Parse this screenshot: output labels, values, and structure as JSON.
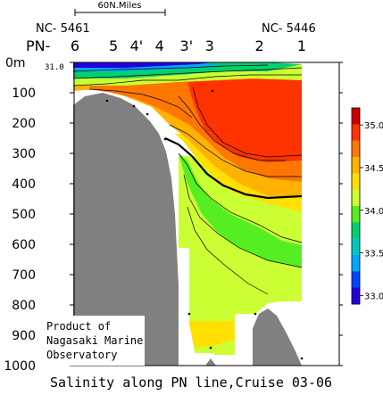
{
  "chart_data": {
    "type": "heatmap",
    "title": "Salinity along PN line,Cruise 03-06",
    "scale_bar_label": "60N.Miles",
    "station_ids": {
      "left": "NC- 5461",
      "right": "NC- 5446"
    },
    "line_prefix": "PN-",
    "stations": [
      {
        "label": "6",
        "x": 0
      },
      {
        "label": "5",
        "x": 1
      },
      {
        "label": "4'",
        "x": 1.6
      },
      {
        "label": "4",
        "x": 2.2
      },
      {
        "label": "3'",
        "x": 2.9
      },
      {
        "label": "3",
        "x": 3.5
      },
      {
        "label": "2",
        "x": 4.8
      },
      {
        "label": "1",
        "x": 5.9
      }
    ],
    "y_axis": {
      "range": [
        0,
        1000
      ],
      "inverted": true,
      "ticks": [
        {
          "value": 0,
          "label": "0m"
        },
        {
          "value": 100,
          "label": "100"
        },
        {
          "value": 200,
          "label": "200"
        },
        {
          "value": 300,
          "label": "300"
        },
        {
          "value": 400,
          "label": "400"
        },
        {
          "value": 500,
          "label": "500"
        },
        {
          "value": 600,
          "label": "600"
        },
        {
          "value": 700,
          "label": "700"
        },
        {
          "value": 800,
          "label": "800"
        },
        {
          "value": 900,
          "label": "900"
        },
        {
          "value": 1000,
          "label": "1000"
        }
      ]
    },
    "surface_annotation": "31.0",
    "colorbar": {
      "range": [
        32.9,
        35.2
      ],
      "tick_labels": [
        "35.0",
        "34.5",
        "34.0",
        "33.5",
        "33.0"
      ],
      "tick_values": [
        35.0,
        34.5,
        34.0,
        33.5,
        33.0
      ],
      "colors": [
        "#cc0000",
        "#ff3300",
        "#ff7700",
        "#ffb300",
        "#ffe000",
        "#ccff33",
        "#55ee22",
        "#00d070",
        "#00c8c0",
        "#00a8ff",
        "#0044ff",
        "#2200dd"
      ]
    },
    "fields": [
      {
        "salinity": 33.0,
        "color": "#2200dd"
      },
      {
        "salinity": 33.4,
        "color": "#00a8ff"
      },
      {
        "salinity": 33.8,
        "color": "#00d070"
      },
      {
        "salinity": 34.2,
        "color": "#ccff33"
      },
      {
        "salinity": 34.4,
        "color": "#ffe000"
      },
      {
        "salinity": 34.6,
        "color": "#ffb300"
      },
      {
        "salinity": 34.8,
        "color": "#ff7700"
      },
      {
        "salinity": 35.0,
        "color": "#ff3300"
      }
    ],
    "credit": [
      "Product of",
      "Nagasaki Marine",
      "Observatory"
    ],
    "bathymetry_color": "#808080"
  }
}
